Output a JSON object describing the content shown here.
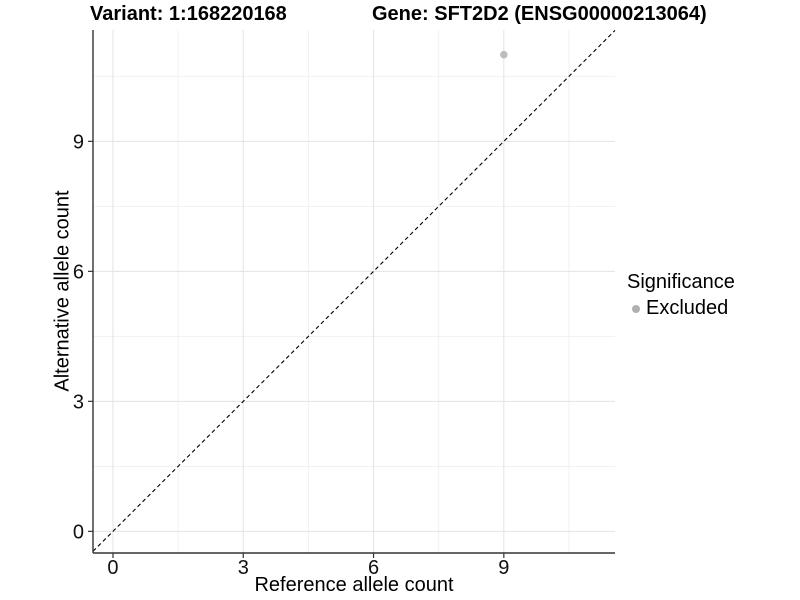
{
  "header": {
    "variant_title": "Variant: 1:168220168",
    "gene_title": "Gene: SFT2D2 (ENSG00000213064)"
  },
  "legend": {
    "title": "Significance",
    "items": [
      {
        "label": "Excluded",
        "color": "#b0b0b0"
      }
    ]
  },
  "chart_data": {
    "type": "scatter",
    "title": "Variant: 1:168220168   Gene: SFT2D2 (ENSG00000213064)",
    "xlabel": "Reference allele count",
    "ylabel": "Alternative allele count",
    "xlim": [
      -0.46,
      11.56
    ],
    "ylim": [
      -0.5,
      11.57
    ],
    "x_ticks": [
      0,
      3,
      6,
      9
    ],
    "y_ticks": [
      0,
      3,
      6,
      9
    ],
    "x_minor_ticks": [
      1.5,
      4.5,
      7.5,
      10.5
    ],
    "y_minor_ticks": [
      1.5,
      4.5,
      7.5,
      10.5
    ],
    "grid": "major+minor",
    "legend_position": "right",
    "series": [
      {
        "name": "Excluded",
        "color": "#bdbdbd",
        "points": [
          {
            "x": 9,
            "y": 11
          }
        ]
      }
    ],
    "reference_line": {
      "style": "dashed",
      "color": "#000000",
      "from": [
        -0.46,
        -0.46
      ],
      "to": [
        11.56,
        11.56
      ]
    },
    "colors": {
      "grid_major": "#e3e3e3",
      "grid_minor": "#f1f1f1",
      "axis": "#333333",
      "background": "#ffffff"
    }
  }
}
